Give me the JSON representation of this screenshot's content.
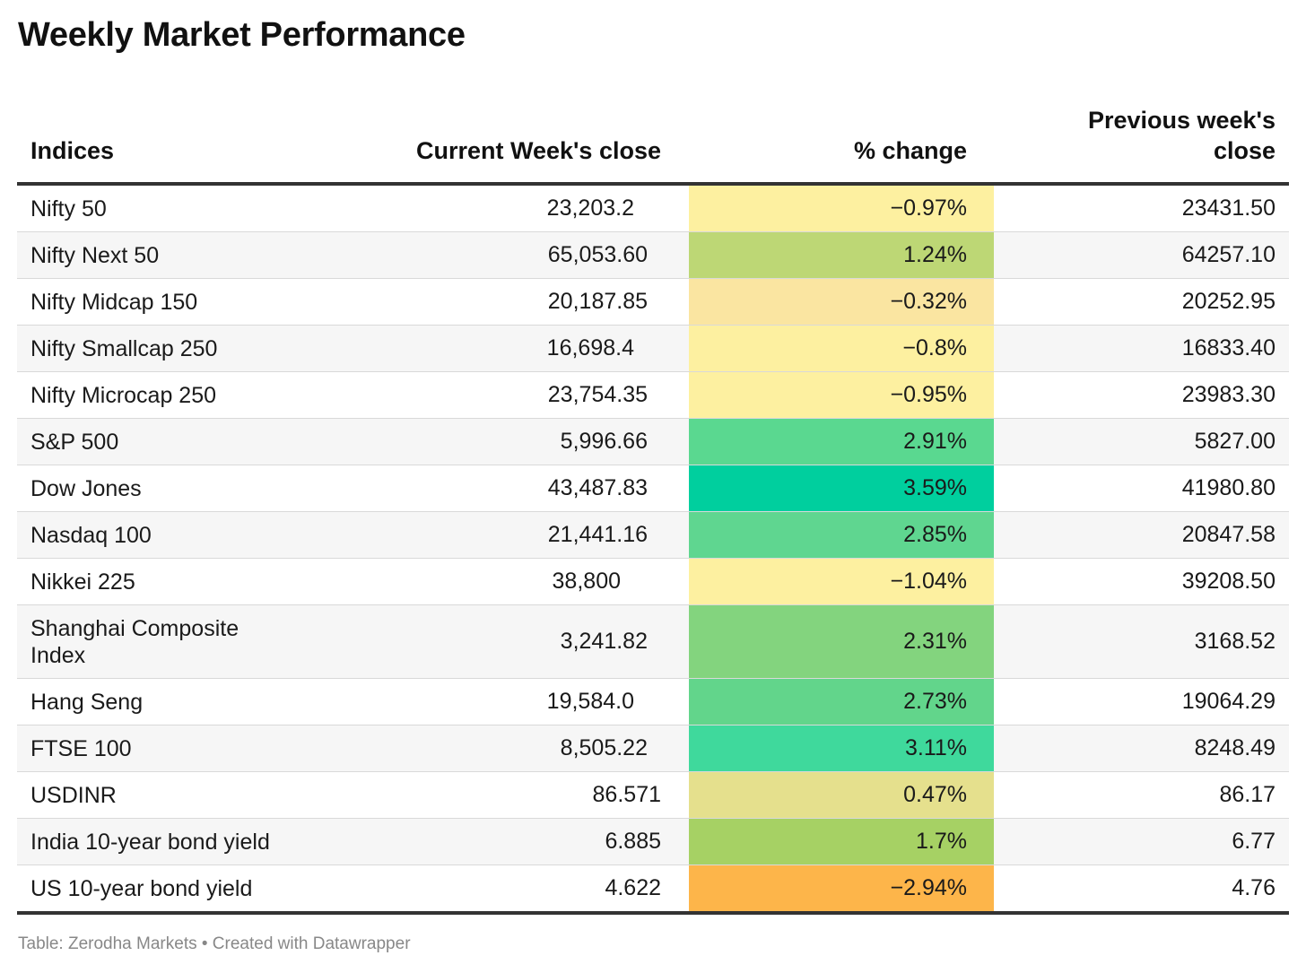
{
  "title": "Weekly Market Performance",
  "footer": "Table: Zerodha Markets • Created with Datawrapper",
  "chart_data": {
    "type": "table",
    "title": "Weekly Market Performance",
    "columns": [
      "Indices",
      "Current Week's close",
      "% change",
      "Previous week's close"
    ],
    "rows": [
      {
        "index": "Nifty 50",
        "current": "23,203.2",
        "change": "−0.97%",
        "change_value": -0.97,
        "color": "#fdf0a0",
        "previous": "23431.50"
      },
      {
        "index": "Nifty Next 50",
        "current": "65,053.60",
        "change": "1.24%",
        "change_value": 1.24,
        "color": "#bdd775",
        "previous": "64257.10"
      },
      {
        "index": "Nifty Midcap 150",
        "current": "20,187.85",
        "change": "−0.32%",
        "change_value": -0.32,
        "color": "#fae5a1",
        "previous": "20252.95"
      },
      {
        "index": "Nifty Smallcap 250",
        "current": "16,698.4",
        "change": "−0.8%",
        "change_value": -0.8,
        "color": "#fdf0a0",
        "previous": "16833.40"
      },
      {
        "index": "Nifty Microcap 250",
        "current": "23,754.35",
        "change": "−0.95%",
        "change_value": -0.95,
        "color": "#fdf0a0",
        "previous": "23983.30"
      },
      {
        "index": "S&P 500",
        "current": "5,996.66",
        "change": "2.91%",
        "change_value": 2.91,
        "color": "#5ad890",
        "previous": "5827.00"
      },
      {
        "index": "Dow Jones",
        "current": "43,487.83",
        "change": "3.59%",
        "change_value": 3.59,
        "color": "#00cf9e",
        "previous": "41980.80"
      },
      {
        "index": "Nasdaq 100",
        "current": "21,441.16",
        "change": "2.85%",
        "change_value": 2.85,
        "color": "#5fd690",
        "previous": "20847.58"
      },
      {
        "index": "Nikkei 225",
        "current": "38,800",
        "change": "−1.04%",
        "change_value": -1.04,
        "color": "#fdf0a0",
        "previous": "39208.50"
      },
      {
        "index": "Shanghai Composite Index",
        "current": "3,241.82",
        "change": "2.31%",
        "change_value": 2.31,
        "color": "#83d47e",
        "previous": "3168.52"
      },
      {
        "index": "Hang Seng",
        "current": "19,584.0",
        "change": "2.73%",
        "change_value": 2.73,
        "color": "#62d58b",
        "previous": "19064.29"
      },
      {
        "index": "FTSE 100",
        "current": "8,505.22",
        "change": "3.11%",
        "change_value": 3.11,
        "color": "#3fd99c",
        "previous": "8248.49"
      },
      {
        "index": "USDINR",
        "current": "86.571",
        "change": "0.47%",
        "change_value": 0.47,
        "color": "#e5e08d",
        "previous": "86.17"
      },
      {
        "index": "India 10-year bond yield",
        "current": "6.885",
        "change": "1.7%",
        "change_value": 1.7,
        "color": "#a6d164",
        "previous": "6.77"
      },
      {
        "index": "US 10-year bond yield",
        "current": "4.622",
        "change": "−2.94%",
        "change_value": -2.94,
        "color": "#fdb54a",
        "previous": "4.76"
      }
    ]
  }
}
